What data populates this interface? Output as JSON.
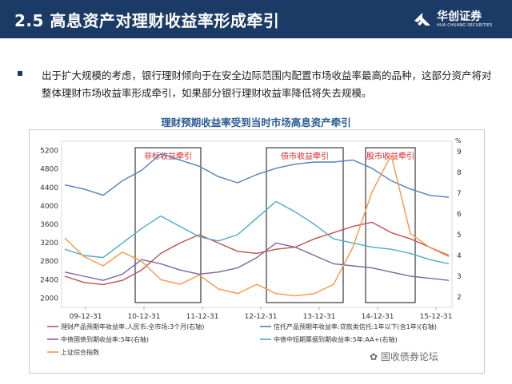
{
  "header": {
    "title": "2.5 高息资产对理财收益率形成牵引",
    "logo_text": "华创证券",
    "logo_subtext": "HUA CHUANG SECURITIES"
  },
  "body_text": "出于扩大规模的考虑，银行理财倾向于在安全边际范围内配置市场收益率最高的品种，这部分资产将对整体理财市场收益率形成牵引，如果部分银行理财收益率降低将失去规模。",
  "chart_data": {
    "type": "line",
    "title": "理财预期收益率受到当时市场高息资产牵引",
    "x_ticks": [
      "09-12-31",
      "10-12-31",
      "11-12-31",
      "12-12-31",
      "13-12-31",
      "14-12-31",
      "15-12-31"
    ],
    "left_axis": {
      "ylim": [
        1800,
        5400
      ],
      "ticks": [
        2000,
        2400,
        2800,
        3200,
        3600,
        4000,
        4400,
        4800,
        5200
      ]
    },
    "right_axis": {
      "unit": "%",
      "ylim": [
        1.5,
        9.5
      ],
      "ticks": [
        2,
        3,
        4,
        5,
        6,
        7,
        8,
        9
      ]
    },
    "annotations": [
      "非标收益牵引",
      "债市收益牵引",
      "股市收益牵引"
    ],
    "series": [
      {
        "name": "理财产品预期年收益率:人民币:全市场:3个月(右轴)",
        "color": "#c0504d",
        "axis": "right",
        "values": [
          3.0,
          2.7,
          2.6,
          2.8,
          3.3,
          4.1,
          4.6,
          5.0,
          4.6,
          4.2,
          4.1,
          4.3,
          4.4,
          4.8,
          5.1,
          5.4,
          5.6,
          5.1,
          4.8,
          4.4,
          4.0
        ]
      },
      {
        "name": "信托产品预期年收益率:贷款类信托:1年以下(含1年)(右轴)",
        "color": "#4f81bd",
        "axis": "right",
        "values": [
          7.4,
          7.2,
          6.9,
          7.6,
          8.1,
          8.9,
          8.6,
          8.3,
          7.8,
          7.5,
          7.9,
          8.2,
          8.4,
          8.5,
          8.5,
          8.6,
          8.2,
          7.6,
          7.2,
          6.9,
          6.8
        ]
      },
      {
        "name": "中债国债到期收益率:5年(右轴)",
        "color": "#8064a2",
        "axis": "right",
        "values": [
          3.2,
          3.0,
          2.8,
          3.1,
          3.8,
          3.6,
          3.3,
          3.1,
          3.2,
          3.4,
          3.9,
          4.6,
          4.4,
          4.0,
          3.6,
          3.5,
          3.4,
          3.2,
          3.0,
          2.9,
          2.8
        ]
      },
      {
        "name": "中债中短期票据到期收益率:5年:AA+(右轴)",
        "color": "#4bacc6",
        "axis": "right",
        "values": [
          4.3,
          4.0,
          3.9,
          4.6,
          5.3,
          5.9,
          5.4,
          4.9,
          4.7,
          5.0,
          5.8,
          6.6,
          6.1,
          5.5,
          4.8,
          4.6,
          4.4,
          4.3,
          4.1,
          3.8,
          3.6
        ]
      },
      {
        "name": "上证综合指数",
        "color": "#f79646",
        "axis": "left",
        "values": [
          3300,
          2900,
          2700,
          3000,
          2800,
          2400,
          2300,
          2500,
          2200,
          2100,
          2300,
          2100,
          2050,
          2100,
          2300,
          3100,
          4300,
          5100,
          3400,
          3100,
          2900
        ]
      }
    ]
  },
  "watermark": "固收债券论坛"
}
